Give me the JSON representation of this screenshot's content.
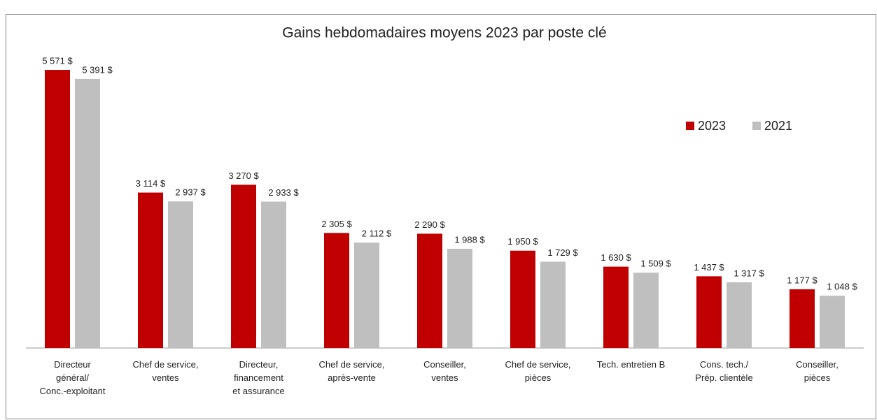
{
  "chart_data": {
    "type": "bar",
    "title": "Gains hebdomadaires moyens 2023 par poste clé",
    "categories": [
      "Directeur\ngénéral/\nConc.-exploitant",
      "Chef de service,\nventes",
      "Directeur,\nfinancement\net assurance",
      "Chef de service,\naprès-vente",
      "Conseiller,\nventes",
      "Chef de service,\npièces",
      "Tech. entretien B",
      "Cons. tech./\nPrép. clientèle",
      "Conseiller,\npièces"
    ],
    "series": [
      {
        "name": "2023",
        "color": "#c00000",
        "values": [
          5571,
          3114,
          3270,
          2305,
          2290,
          1950,
          1630,
          1437,
          1177
        ],
        "value_labels": [
          "5 571 $",
          "3 114 $",
          "3 270 $",
          "2 305 $",
          "2 290 $",
          "1 950 $",
          "1 630 $",
          "1 437 $",
          "1 177 $"
        ]
      },
      {
        "name": "2021",
        "color": "#bfbfbf",
        "values": [
          5391,
          2937,
          2933,
          2112,
          1988,
          1729,
          1509,
          1317,
          1048
        ],
        "value_labels": [
          "5 391 $",
          "2 937 $",
          "2 933 $",
          "2 112 $",
          "1 988 $",
          "1 729 $",
          "1 509 $",
          "1 317 $",
          "1 048 $"
        ]
      }
    ],
    "ylim": [
      0,
      6000
    ],
    "legend": "top-right"
  }
}
